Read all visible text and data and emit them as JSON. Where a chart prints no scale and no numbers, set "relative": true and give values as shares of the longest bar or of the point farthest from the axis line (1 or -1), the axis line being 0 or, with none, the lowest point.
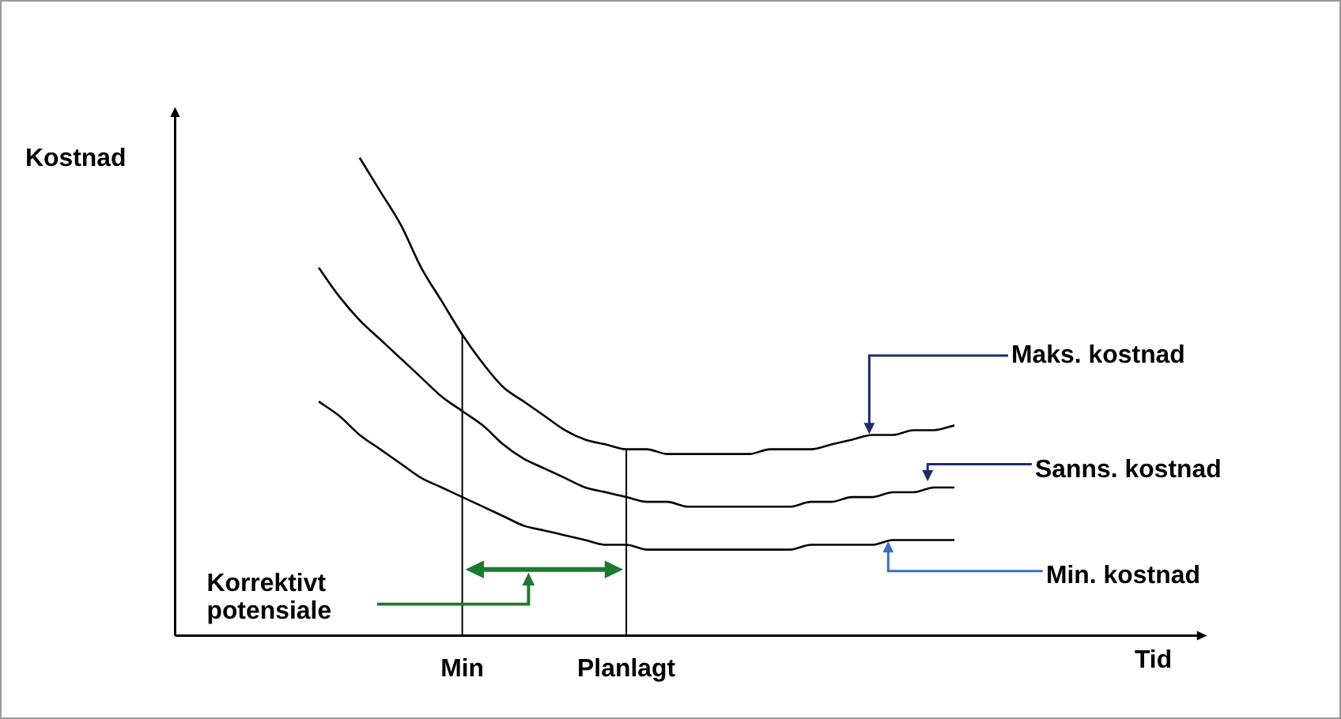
{
  "chart_data": {
    "type": "line",
    "relative": true,
    "xlabel": "Tid",
    "ylabel": "Kostnad",
    "categories": [
      null,
      null,
      null,
      null,
      null,
      null,
      null,
      null,
      null,
      null,
      null,
      null,
      null,
      null,
      "Min",
      null,
      null,
      null,
      null,
      null,
      null,
      null,
      "Planlagt",
      null,
      null,
      null,
      null,
      null,
      null,
      null,
      null,
      null,
      null,
      null,
      null,
      null,
      null,
      null,
      null,
      null,
      null,
      null,
      null,
      null,
      null,
      null,
      null,
      null,
      null,
      null,
      null
    ],
    "grid": false,
    "legend": false,
    "marker": "none",
    "line_style": "solid",
    "series": [
      {
        "name": "Maks. kostnad",
        "color": "#000000",
        "values": [
          null,
          null,
          null,
          null,
          null,
          null,
          null,
          null,
          null,
          1.0,
          0.93,
          0.86,
          0.77,
          0.7,
          0.63,
          0.57,
          0.52,
          0.49,
          0.46,
          0.43,
          0.41,
          0.4,
          0.39,
          0.39,
          0.38,
          0.38,
          0.38,
          0.38,
          0.38,
          0.39,
          0.39,
          0.39,
          0.4,
          0.41,
          0.42,
          0.42,
          0.43,
          0.43,
          0.44,
          null,
          null,
          null,
          null,
          null,
          null,
          null,
          null,
          null,
          null,
          null,
          null
        ]
      },
      {
        "name": "Sanns. kostnad",
        "color": "#000000",
        "values": [
          null,
          null,
          null,
          null,
          null,
          null,
          null,
          0.77,
          0.71,
          0.66,
          0.62,
          0.58,
          0.54,
          0.5,
          0.47,
          0.44,
          0.4,
          0.37,
          0.35,
          0.33,
          0.31,
          0.3,
          0.29,
          0.28,
          0.28,
          0.27,
          0.27,
          0.27,
          0.27,
          0.27,
          0.27,
          0.28,
          0.28,
          0.29,
          0.29,
          0.3,
          0.3,
          0.31,
          0.31,
          null,
          null,
          null,
          null,
          null,
          null,
          null,
          null,
          null,
          null,
          null,
          null
        ]
      },
      {
        "name": "Min. kostnad",
        "color": "#000000",
        "values": [
          null,
          null,
          null,
          null,
          null,
          null,
          null,
          0.49,
          0.46,
          0.42,
          0.39,
          0.36,
          0.33,
          0.31,
          0.29,
          0.27,
          0.25,
          0.23,
          0.22,
          0.21,
          0.2,
          0.19,
          0.19,
          0.18,
          0.18,
          0.18,
          0.18,
          0.18,
          0.18,
          0.18,
          0.18,
          0.19,
          0.19,
          0.19,
          0.19,
          0.2,
          0.2,
          0.2,
          0.2,
          null,
          null,
          null,
          null,
          null,
          null,
          null,
          null,
          null,
          null,
          null,
          null
        ]
      }
    ],
    "ref_lines": [
      {
        "axis": "x",
        "value": "Min",
        "color": "#000000"
      },
      {
        "axis": "x",
        "value": "Planlagt",
        "color": "#000000"
      }
    ],
    "annotations": [
      "Korrektivt potensiale"
    ]
  }
}
